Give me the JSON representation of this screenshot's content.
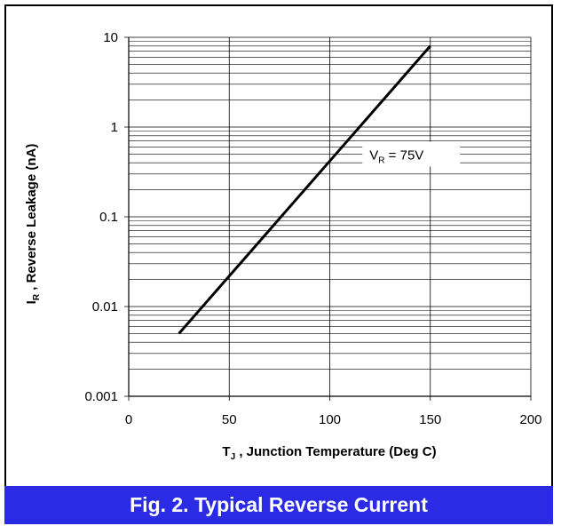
{
  "colors": {
    "caption_background": "#2b2be6",
    "caption_text": "#ffffff",
    "series_line": "#000000",
    "grid": "#000000"
  },
  "caption": "Fig. 2.  Typical Reverse Current",
  "chart_data": {
    "type": "line",
    "x_scale": "linear",
    "y_scale": "log",
    "xlim": [
      0,
      200
    ],
    "ylim": [
      0.001,
      10
    ],
    "x_ticks": [
      0,
      50,
      100,
      150,
      200
    ],
    "x_tick_labels": [
      "0",
      "50",
      "100",
      "150",
      "200"
    ],
    "y_ticks": [
      0.001,
      0.01,
      0.1,
      1,
      10
    ],
    "y_tick_labels": [
      "0.001",
      "0.01",
      "0.1",
      "1",
      "10"
    ],
    "grid": true,
    "xlabel": {
      "main": "T",
      "sub": "J",
      "rest": " , Junction Temperature (Deg C)"
    },
    "ylabel": {
      "main": "I",
      "sub": "R",
      "rest": " , Reverse Leakage (nA)"
    },
    "series": [
      {
        "x": [
          25,
          150
        ],
        "y": [
          0.005,
          8
        ]
      }
    ],
    "annotations": [
      {
        "main": "V",
        "sub": "R",
        "rest": " = 75V",
        "x": 118,
        "y": 0.5
      }
    ]
  }
}
